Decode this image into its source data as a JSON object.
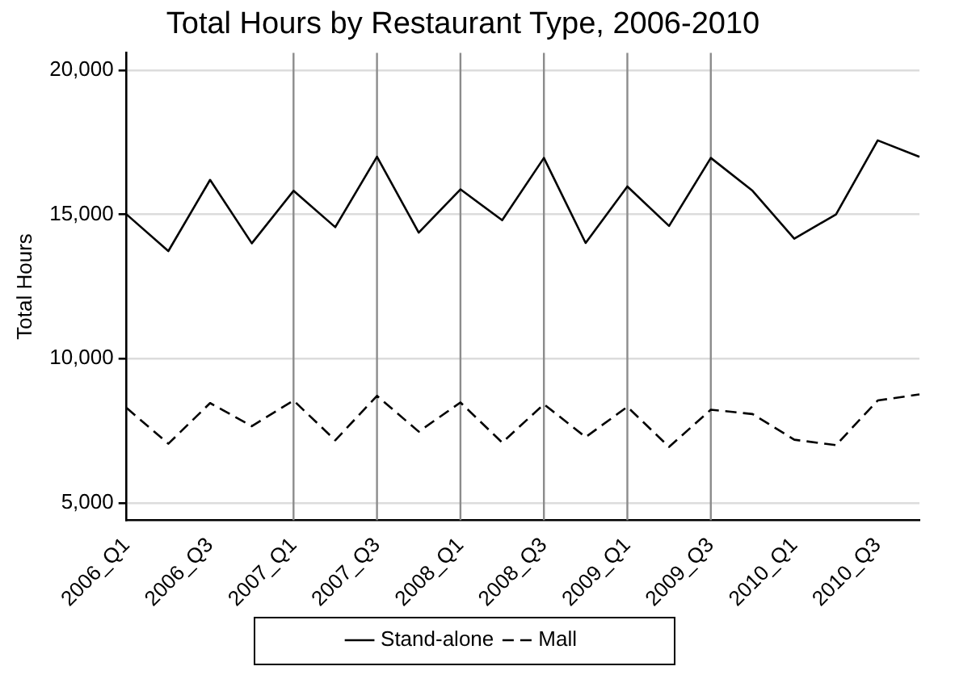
{
  "chart_data": {
    "type": "line",
    "title": "Total Hours by Restaurant Type, 2006-2010",
    "ylabel": "Total Hours",
    "categories": [
      "2006_Q1",
      null,
      "2006_Q3",
      null,
      "2007_Q1",
      null,
      "2007_Q3",
      null,
      "2008_Q1",
      null,
      "2008_Q3",
      null,
      "2009_Q1",
      null,
      "2009_Q3",
      null,
      "2010_Q1",
      null,
      "2010_Q3",
      null
    ],
    "series": [
      {
        "name": "Stand-alone",
        "color": "#000000",
        "line_style": "solid",
        "values": [
          15000,
          13730,
          16200,
          14000,
          15820,
          14560,
          17000,
          14370,
          15870,
          14800,
          16960,
          14010,
          15970,
          14600,
          16960,
          15820,
          14160,
          15000,
          17570,
          17000
        ]
      },
      {
        "name": "Mall",
        "color": "#000000",
        "line_style": "dashed",
        "values": [
          8290,
          7050,
          8460,
          7660,
          8550,
          7170,
          8710,
          7470,
          8480,
          7090,
          8420,
          7280,
          8330,
          6940,
          8230,
          8080,
          7190,
          7000,
          8550,
          8760
        ]
      }
    ],
    "ylim": [
      4400,
      20600
    ],
    "yticks": [
      {
        "value": 5000,
        "label": "5,000"
      },
      {
        "value": 10000,
        "label": "10,000"
      },
      {
        "value": 15000,
        "label": "15,000"
      },
      {
        "value": 20000,
        "label": "20,000"
      }
    ],
    "grid": "y",
    "legend": "bottom",
    "marker": "none",
    "ref_lines": [
      {
        "axis": "x",
        "value": "2007_Q1",
        "color": "#8c8c8c"
      },
      {
        "axis": "x",
        "value": "2007_Q3",
        "color": "#8c8c8c"
      },
      {
        "axis": "x",
        "value": "2008_Q1",
        "color": "#8c8c8c"
      },
      {
        "axis": "x",
        "value": "2008_Q3",
        "color": "#8c8c8c"
      },
      {
        "axis": "x",
        "value": "2009_Q1",
        "color": "#8c8c8c"
      },
      {
        "axis": "x",
        "value": "2009_Q3",
        "color": "#8c8c8c"
      }
    ]
  }
}
